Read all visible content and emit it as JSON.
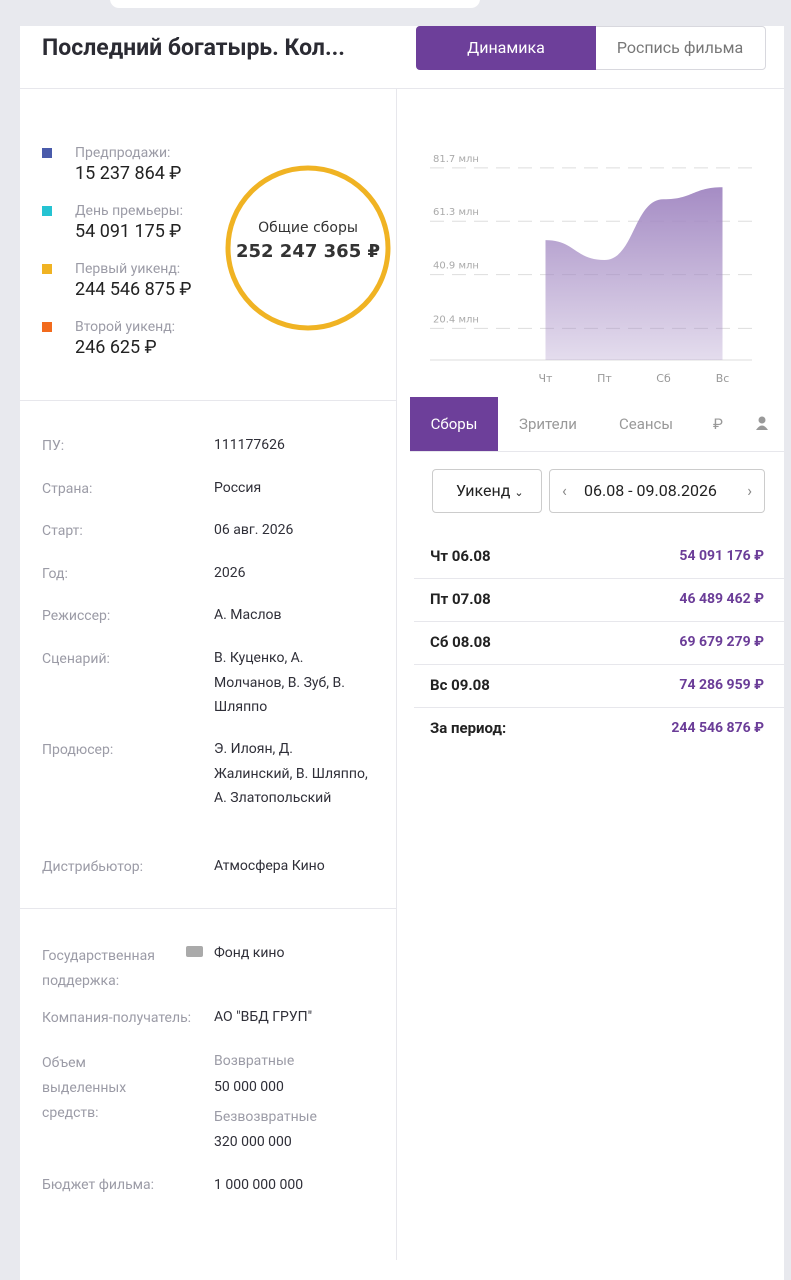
{
  "header": {
    "title": "Последний богатырь. Кол...",
    "tabs": [
      "Динамика",
      "Роспись фильма"
    ]
  },
  "summary": {
    "items": [
      {
        "label": "Предпродажи:",
        "value": "15 237 864 ₽",
        "color": "#4a5bab"
      },
      {
        "label": "День премьеры:",
        "value": "54 091 175 ₽",
        "color": "#25c3d2"
      },
      {
        "label": "Первый уикенд:",
        "value": "244 546 875 ₽",
        "color": "#f0b323"
      },
      {
        "label": "Второй уикенд:",
        "value": "246 625 ₽",
        "color": "#f26b1d"
      }
    ],
    "total_label": "Общие сборы",
    "total_value": "252 247 365 ₽"
  },
  "info": {
    "rows": [
      [
        "ПУ:",
        "111177626"
      ],
      [
        "Страна:",
        "Россия"
      ],
      [
        "Старт:",
        "06 авг. 2026"
      ],
      [
        "Год:",
        "2026"
      ],
      [
        "Режиссер:",
        "А. Маслов"
      ],
      [
        "Сценарий:",
        "В. Куценко, А. Молчанов, В. Зуб, В. Шляппо"
      ],
      [
        "Продюсер:",
        "Э. Илоян, Д. Жалинский, В. Шляппо, А. Златопольский"
      ],
      [
        "Дистрибьютор:",
        "Атмосфера Кино"
      ]
    ]
  },
  "support": {
    "state_label": "Государственная поддержка:",
    "state_value": "Фонд кино",
    "company_label": "Компания-получатель:",
    "company_value": "АО \"ВБД ГРУП\"",
    "funds_label": "Объем выделенных средств:",
    "returnable_label": "Возвратные",
    "returnable_value": "50 000 000",
    "nonreturnable_label": "Безвозвратные",
    "nonreturnable_value": "320 000 000",
    "budget_label": "Бюджет фильма:",
    "budget_value": "1 000 000 000"
  },
  "chart_data": {
    "type": "area",
    "categories": [
      "Чт",
      "Пт",
      "Сб",
      "Вс"
    ],
    "values": [
      54.09,
      46.49,
      69.68,
      74.29
    ],
    "color": "#a58cc4",
    "ylim": [
      8.3,
      86.6
    ],
    "yticks": [
      {
        "value": 20.4,
        "label": "20.4 млн"
      },
      {
        "value": 40.9,
        "label": "40.9 млн"
      },
      {
        "value": 61.3,
        "label": "61.3 млн"
      },
      {
        "value": 81.7,
        "label": "81.7 млн"
      }
    ],
    "grid": true
  },
  "stats": {
    "tabs": [
      "Сборы",
      "Зрители",
      "Сеансы",
      "₽"
    ],
    "period": "Уикенд",
    "range": "06.08 - 09.08.2026",
    "rows": [
      {
        "day": "Чт 06.08",
        "value": "54 091 176 ₽"
      },
      {
        "day": "Пт 07.08",
        "value": "46 489 462 ₽"
      },
      {
        "day": "Сб 08.08",
        "value": "69 679 279 ₽"
      },
      {
        "day": "Вс 09.08",
        "value": "74 286 959 ₽"
      }
    ],
    "total_label": "За период:",
    "total_value": "244 546 876 ₽"
  }
}
